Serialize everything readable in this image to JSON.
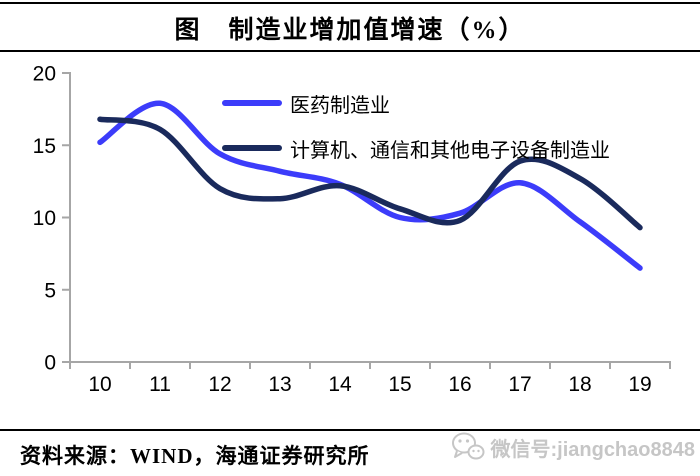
{
  "chart_data": {
    "type": "line",
    "title": "图　制造业增加值增速（%）",
    "categories": [
      "10",
      "11",
      "12",
      "13",
      "14",
      "15",
      "16",
      "17",
      "18",
      "19"
    ],
    "series": [
      {
        "name": "医药制造业",
        "color": "#3c3cfa",
        "values": [
          15.2,
          17.9,
          14.4,
          13.2,
          12.3,
          10.0,
          10.3,
          12.4,
          9.7,
          6.5
        ]
      },
      {
        "name": "计算机、通信和其他电子设备制造业",
        "color": "#1a2a5c",
        "values": [
          16.8,
          16.1,
          12.0,
          11.3,
          12.2,
          10.6,
          9.8,
          13.9,
          12.7,
          9.3
        ]
      }
    ],
    "xlabel": "",
    "ylabel": "",
    "ylim": [
      0,
      20
    ],
    "yticks": [
      0,
      5,
      10,
      15,
      20
    ],
    "grid": false,
    "smooth": true,
    "legend_position": "top-left-inside",
    "axis_color": "#a6a6a6",
    "tick_label_color": "#000000"
  },
  "footer": {
    "source": "资料来源：WIND，海通证券研究所",
    "watermark_icon": "wechat-icon",
    "watermark_text": "微信号:jiangchao8848"
  }
}
